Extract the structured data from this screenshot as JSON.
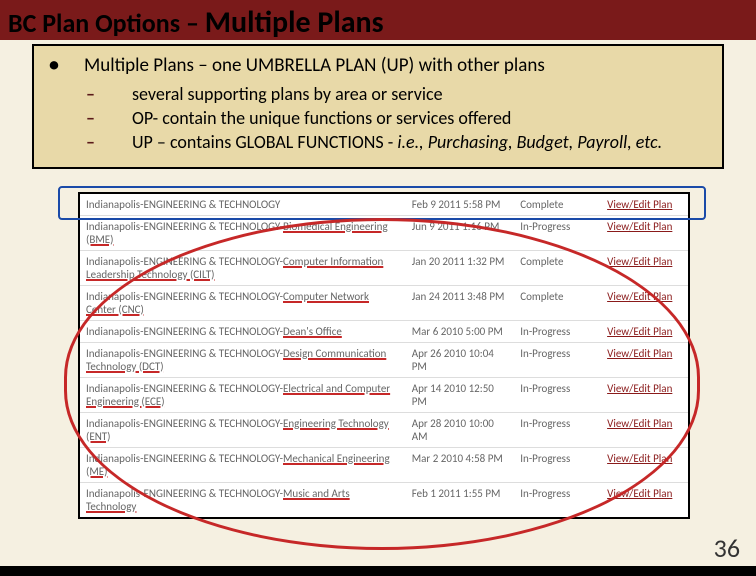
{
  "title": {
    "part1": "BC Plan Options – ",
    "part2": "Multiple Plans"
  },
  "bullet": {
    "main": "Multiple Plans – one UMBRELLA PLAN (UP) with other plans",
    "subs": [
      {
        "text": "several supporting plans by area or service"
      },
      {
        "text": "OP- contain the unique functions or services offered"
      },
      {
        "text_html": "UP – contains GLOBAL FUNCTIONS  - <em>i.e., Purchasing, Budget, Payroll, etc.</em>"
      }
    ]
  },
  "link_label": "View/Edit Plan",
  "rows": [
    {
      "name_pre": "Indianapolis-ENGINEERING & TECHNOLOGY",
      "name_u": "",
      "date": "Feb 9 2011 5:58 PM",
      "status": "Complete"
    },
    {
      "name_pre": "Indianapolis-ENGINEERING & TECHNOLOGY-",
      "name_u": "Biomedical Engineering (BME)",
      "date": "Jun 9 2011 1:16 PM",
      "status": "In-Progress"
    },
    {
      "name_pre": "Indianapolis-ENGINEERING & TECHNOLOGY-",
      "name_u": "Computer Information Leadership Technology (CILT)",
      "date": "Jan 20 2011 1:32 PM",
      "status": "Complete"
    },
    {
      "name_pre": "Indianapolis-ENGINEERING & TECHNOLOGY-",
      "name_u": "Computer Network Center (CNC)",
      "date": "Jan 24 2011 3:48 PM",
      "status": "Complete"
    },
    {
      "name_pre": "Indianapolis-ENGINEERING & TECHNOLOGY-",
      "name_u": "Dean's Office",
      "date": "Mar 6 2010 5:00 PM",
      "status": "In-Progress"
    },
    {
      "name_pre": "Indianapolis-ENGINEERING & TECHNOLOGY-",
      "name_u": "Design Communication Technology (DCT)",
      "date": "Apr 26 2010 10:04 PM",
      "status": "In-Progress"
    },
    {
      "name_pre": "Indianapolis-ENGINEERING & TECHNOLOGY-",
      "name_u": "Electrical and Computer Engineering (ECE)",
      "date": "Apr 14 2010 12:50 PM",
      "status": "In-Progress"
    },
    {
      "name_pre": "Indianapolis-ENGINEERING & TECHNOLOGY-",
      "name_u": "Engineering Technology (ENT)",
      "date": "Apr 28 2010 10:00 AM",
      "status": "In-Progress"
    },
    {
      "name_pre": "Indianapolis-ENGINEERING & TECHNOLOGY-",
      "name_u": "Mechanical Engineering (ME)",
      "date": "Mar 2 2010 4:58 PM",
      "status": "In-Progress"
    },
    {
      "name_pre": "Indianapolis-ENGINEERING & TECHNOLOGY-",
      "name_u": "Music and Arts Technology",
      "date": "Feb 1 2011 1:55 PM",
      "status": "In-Progress"
    }
  ],
  "page_number": "36"
}
